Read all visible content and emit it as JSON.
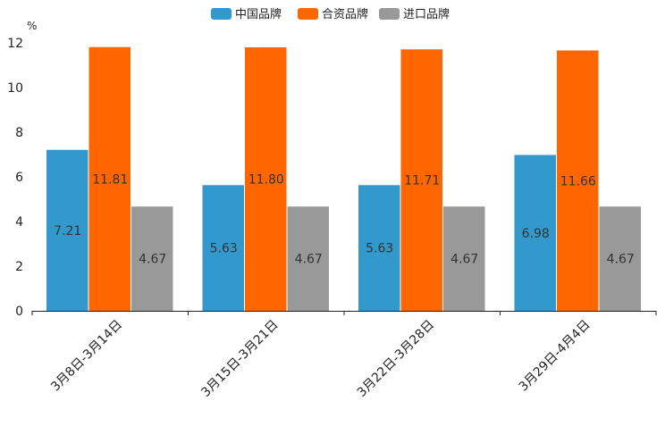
{
  "chart_data": {
    "type": "bar",
    "title": "",
    "ylabel": "%",
    "xlabel": "",
    "ylim": [
      0,
      12
    ],
    "yticks": [
      0,
      2,
      4,
      6,
      8,
      10,
      12
    ],
    "categories": [
      "3月8日-3月14日",
      "3月15日-3月21日",
      "3月22日-3月28日",
      "3月29日-4月4日"
    ],
    "series": [
      {
        "name": "中国品牌",
        "color": "#3399CC",
        "values": [
          7.21,
          5.63,
          5.63,
          6.98
        ],
        "labels": [
          "7.21",
          "5.63",
          "5.63",
          "6.98"
        ]
      },
      {
        "name": "合资品牌",
        "color": "#FF6600",
        "values": [
          11.81,
          11.8,
          11.71,
          11.66
        ],
        "labels": [
          "11.81",
          "11.80",
          "11.71",
          "11.66"
        ]
      },
      {
        "name": "进口品牌",
        "color": "#999999",
        "values": [
          4.67,
          4.67,
          4.67,
          4.67
        ],
        "labels": [
          "4.67",
          "4.67",
          "4.67",
          "4.67"
        ]
      }
    ],
    "legend_position": "top-center",
    "grid": false
  }
}
